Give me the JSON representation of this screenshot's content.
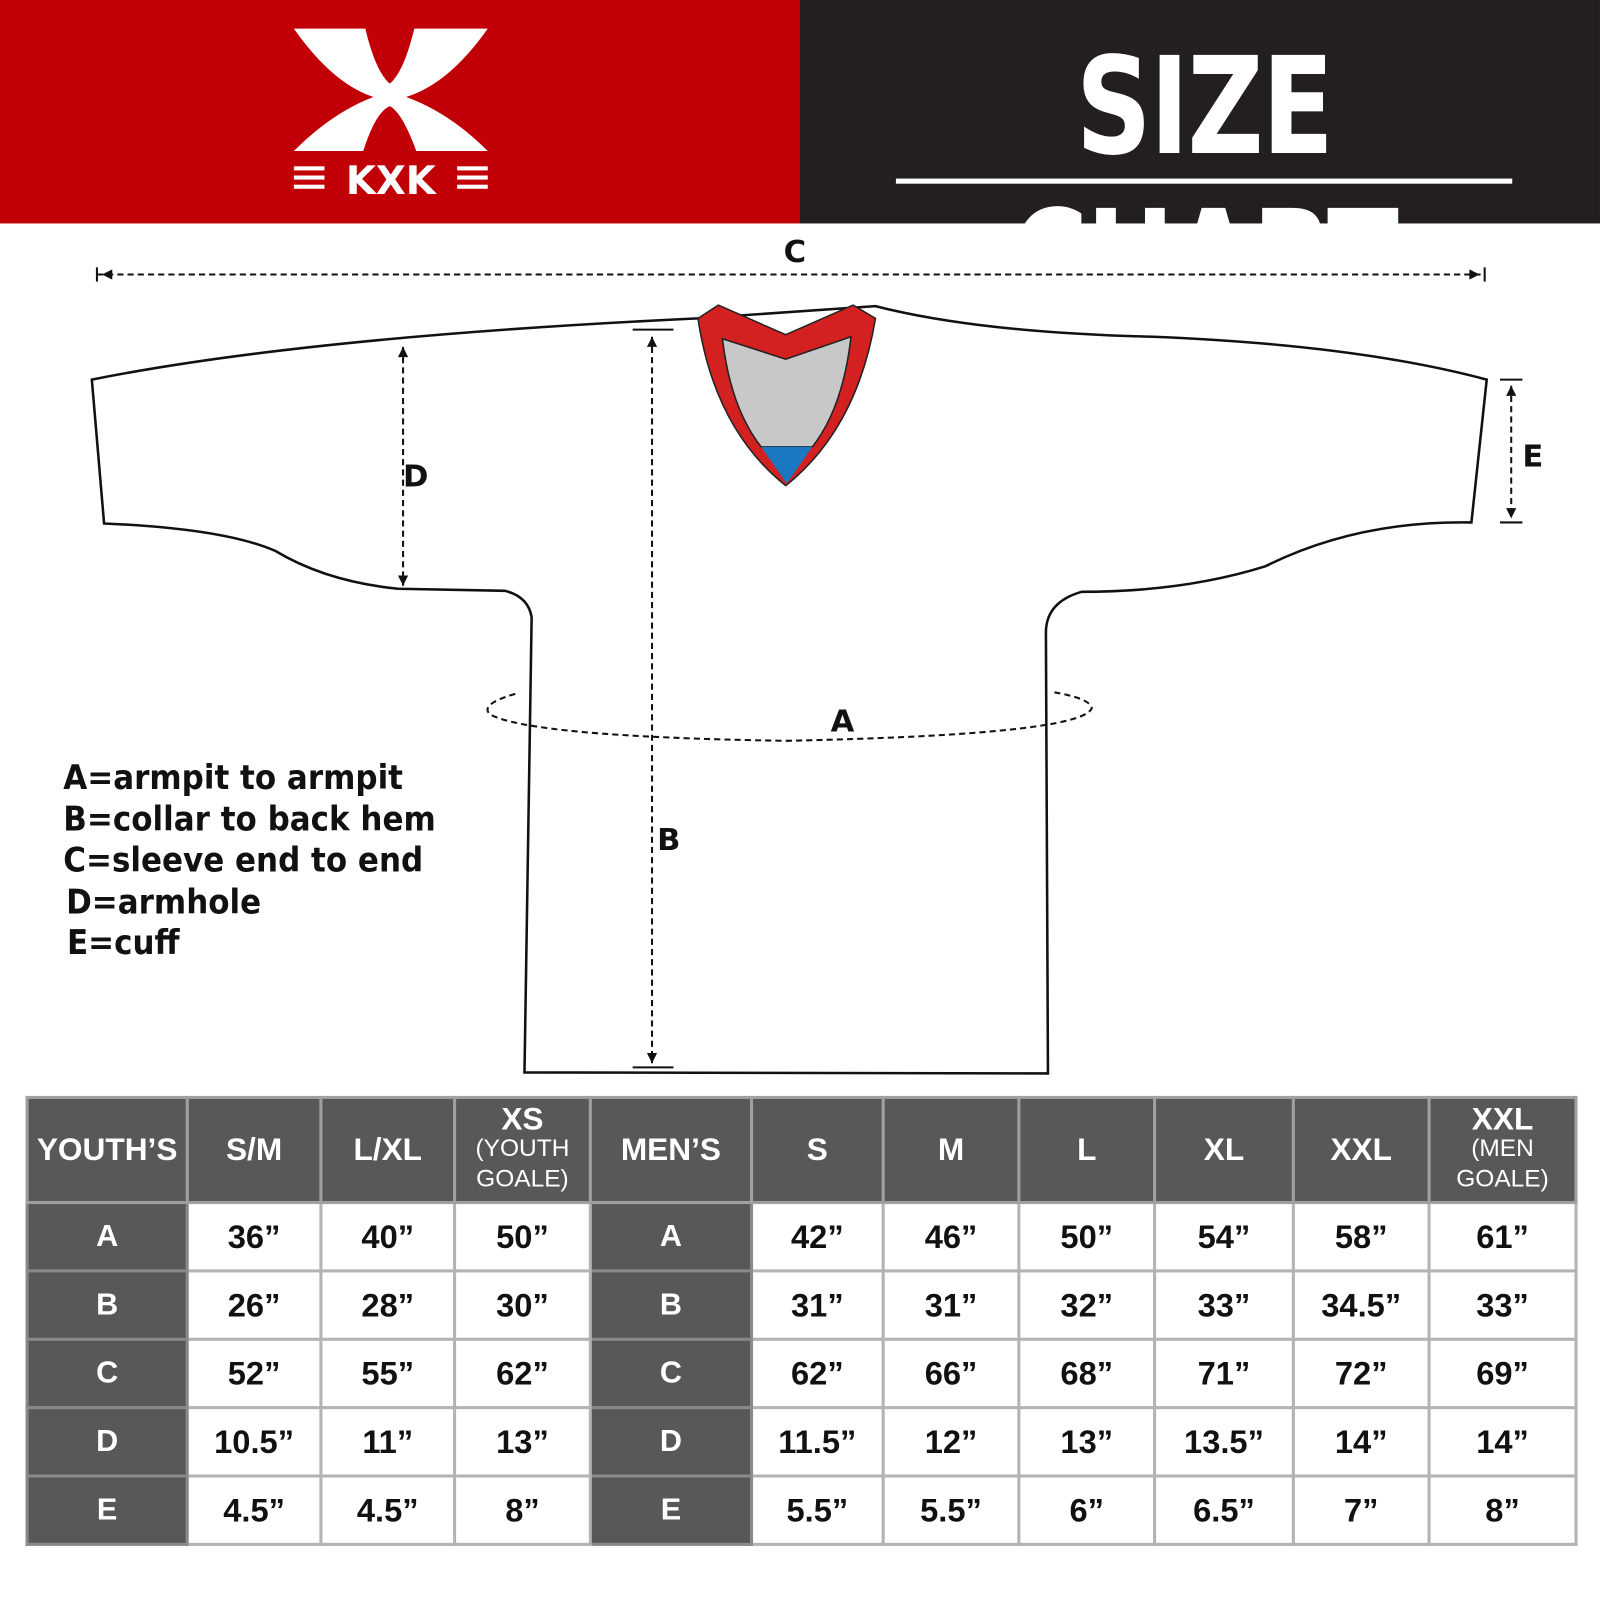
{
  "header": {
    "logo_text": "KXK",
    "title": "SIZE CHART",
    "colors": {
      "brand_red": "#c00006",
      "dark": "#231f20",
      "table_header": "#58585a"
    }
  },
  "diagram": {
    "labels": {
      "A": "A",
      "B": "B",
      "C": "C",
      "D": "D",
      "E": "E"
    },
    "legend": [
      "A=armpit to armpit",
      "B=collar to back hem",
      "C=sleeve end to end",
      "D=armhole",
      "E=cuff"
    ]
  },
  "table": {
    "youth": {
      "header": "YOUTH’S",
      "sizes": [
        {
          "label": "S/M",
          "sub": ""
        },
        {
          "label": "L/XL",
          "sub": ""
        },
        {
          "label": "XS",
          "sub": "(YOUTH GOALE)"
        }
      ]
    },
    "men": {
      "header": "MEN’S",
      "sizes": [
        {
          "label": "S",
          "sub": ""
        },
        {
          "label": "M",
          "sub": ""
        },
        {
          "label": "L",
          "sub": ""
        },
        {
          "label": "XL",
          "sub": ""
        },
        {
          "label": "XXL",
          "sub": ""
        },
        {
          "label": "XXL",
          "sub": "(MEN GOALE)"
        }
      ]
    },
    "rows": [
      {
        "key": "A",
        "youth": [
          "36”",
          "40”",
          "50”"
        ],
        "men": [
          "42”",
          "46”",
          "50”",
          "54”",
          "58”",
          "61”"
        ]
      },
      {
        "key": "B",
        "youth": [
          "26”",
          "28”",
          "30”"
        ],
        "men": [
          "31”",
          "31”",
          "32”",
          "33”",
          "34.5”",
          "33”"
        ]
      },
      {
        "key": "C",
        "youth": [
          "52”",
          "55”",
          "62”"
        ],
        "men": [
          "62”",
          "66”",
          "68”",
          "71”",
          "72”",
          "69”"
        ]
      },
      {
        "key": "D",
        "youth": [
          "10.5”",
          "11”",
          "13”"
        ],
        "men": [
          "11.5”",
          "12”",
          "13”",
          "13.5”",
          "14”",
          "14”"
        ]
      },
      {
        "key": "E",
        "youth": [
          "4.5”",
          "4.5”",
          "8”"
        ],
        "men": [
          "5.5”",
          "5.5”",
          "6”",
          "6.5”",
          "7”",
          "8”"
        ]
      }
    ]
  }
}
